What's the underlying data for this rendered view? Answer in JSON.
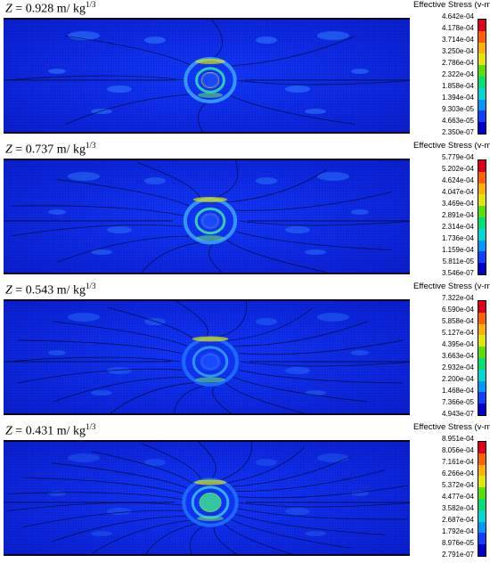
{
  "legend_title": "Effective Stress (v-m)",
  "colorbar_colors": [
    "#e0001a",
    "#ff6000",
    "#ffb000",
    "#e4e600",
    "#58e000",
    "#00e070",
    "#00d8d8",
    "#0098ff",
    "#1040ff",
    "#0000c8"
  ],
  "panels": [
    {
      "z_text": "Z",
      "z_value": " = 0.928 m/ kg",
      "z_exp": "1/3",
      "ticks": [
        "4.642e-04",
        "4.178e-04",
        "3.714e-04",
        "3.250e-04",
        "2.786e-04",
        "2.322e-04",
        "1.858e-04",
        "1.394e-04",
        "9.303e-05",
        "4.663e-05",
        "2.350e-07"
      ]
    },
    {
      "z_text": "Z",
      "z_value": " = 0.737 m/ kg",
      "z_exp": "1/3",
      "ticks": [
        "5.779e-04",
        "5.202e-04",
        "4.624e-04",
        "4.047e-04",
        "3.469e-04",
        "2.891e-04",
        "2.314e-04",
        "1.736e-04",
        "1.159e-04",
        "5.811e-05",
        "3.546e-07"
      ]
    },
    {
      "z_text": "Z",
      "z_value": " = 0.543 m/ kg",
      "z_exp": "1/3",
      "ticks": [
        "7.322e-04",
        "6.590e-04",
        "5.858e-04",
        "5.127e-04",
        "4.395e-04",
        "3.663e-04",
        "2.932e-04",
        "2.200e-04",
        "1.468e-04",
        "7.366e-05",
        "4.943e-07"
      ]
    },
    {
      "z_text": "Z",
      "z_value": " = 0.431 m/ kg",
      "z_exp": "1/3",
      "ticks": [
        "8.951e-04",
        "8.056e-04",
        "7.161e-04",
        "6.266e-04",
        "5.372e-04",
        "4.477e-04",
        "3.582e-04",
        "2.687e-04",
        "1.792e-04",
        "8.976e-05",
        "2.791e-07"
      ]
    }
  ]
}
